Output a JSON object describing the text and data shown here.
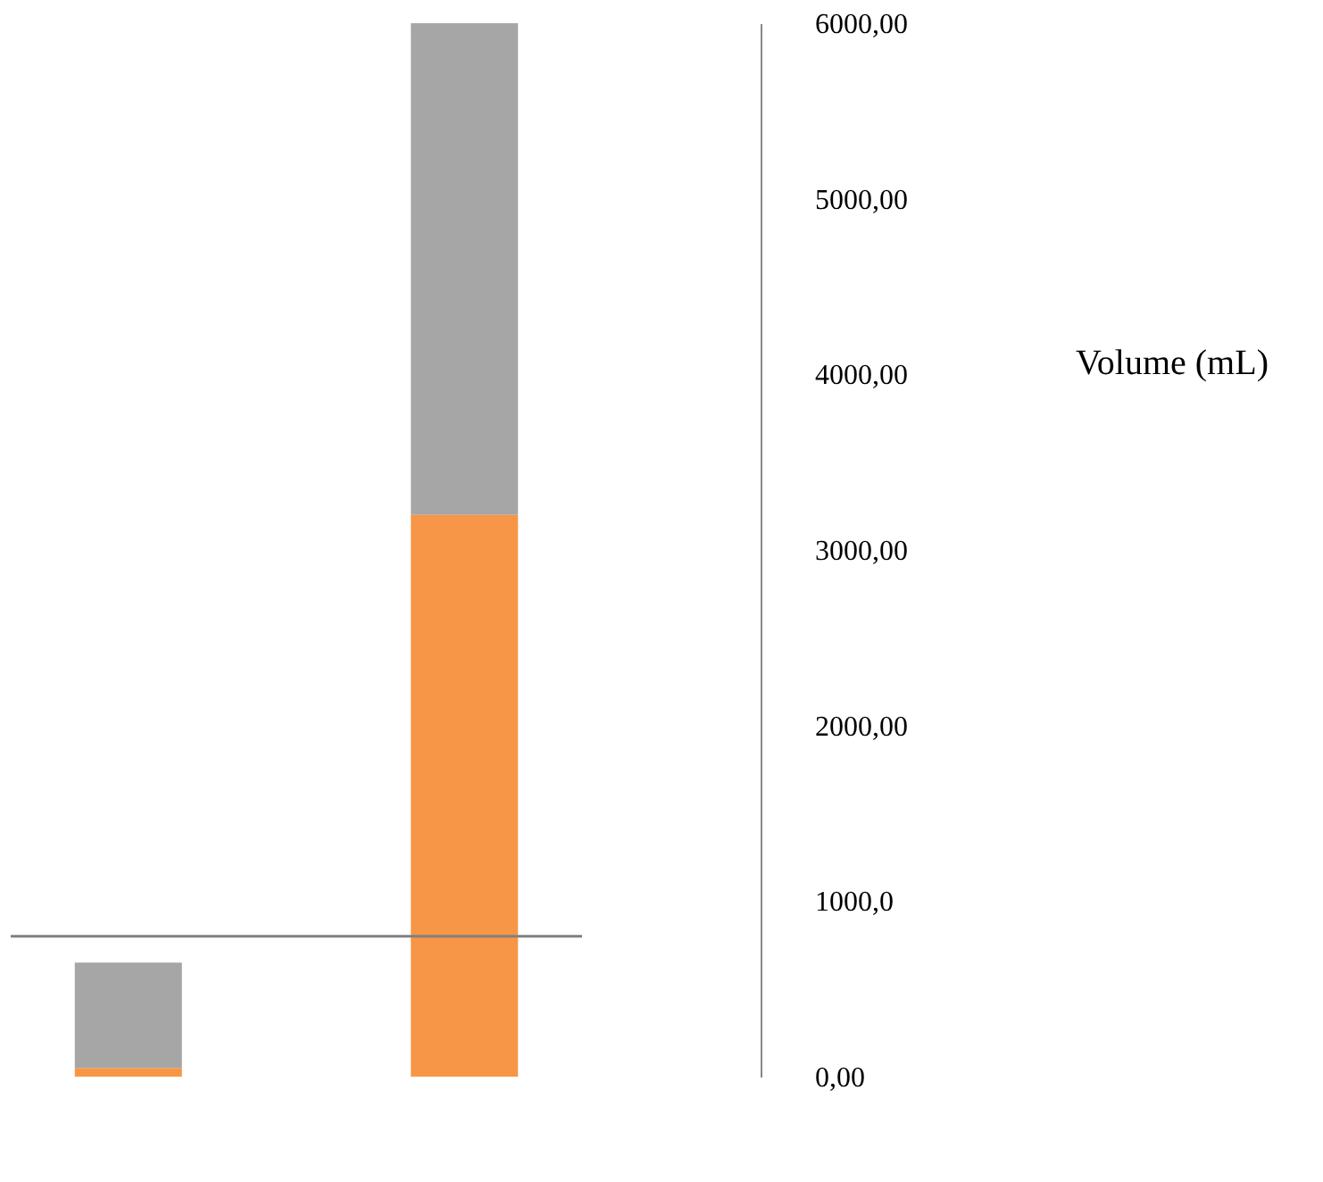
{
  "chart_data": {
    "type": "bar",
    "stacked": true,
    "categories": [
      null,
      null
    ],
    "series": [
      {
        "color": "#f79646",
        "values": [
          50,
          3200
        ]
      },
      {
        "color": "#a6a6a6",
        "values": [
          600,
          2800
        ]
      }
    ],
    "ylabel": "Volume (mL)",
    "ylim": [
      0,
      6000
    ],
    "yticks": [
      {
        "value": 0,
        "label": "0,00"
      },
      {
        "value": 1000,
        "label": "1000,0"
      },
      {
        "value": 2000,
        "label": "2000,00"
      },
      {
        "value": 3000,
        "label": "3000,00"
      },
      {
        "value": 4000,
        "label": "4000,00"
      },
      {
        "value": 5000,
        "label": "5000,00"
      },
      {
        "value": 6000,
        "label": "6000,00"
      }
    ],
    "ref_lines": [
      {
        "axis": "y",
        "value": 800,
        "color": "#808080"
      }
    ],
    "grid": false,
    "legend": false
  }
}
